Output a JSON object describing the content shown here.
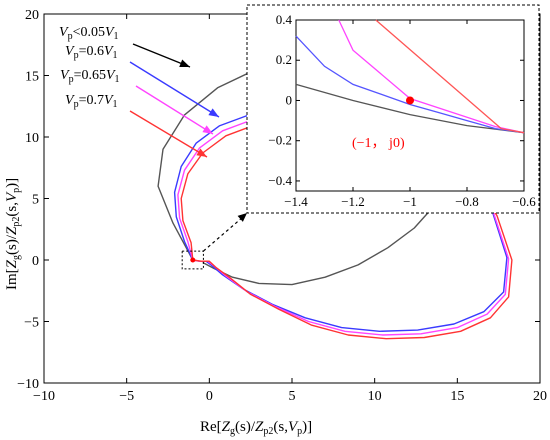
{
  "chart_data": [
    {
      "type": "line",
      "title": "",
      "xlabel": {
        "pre": "Re[",
        "a": "Z",
        "as": "g",
        "b": "(s)/",
        "c": "Z",
        "cs": "p2",
        "d": "(s,",
        "e": "V",
        "es": "p",
        "f": ")]"
      },
      "ylabel": {
        "pre": "Im[",
        "a": "Z",
        "as": "g",
        "b": "(s)/",
        "c": "Z",
        "cs": "p2",
        "d": "(s,",
        "e": "V",
        "es": "p",
        "f": ")]"
      },
      "xlim": [
        -10,
        20
      ],
      "ylim": [
        -10,
        20
      ],
      "x_ticks": [
        "−10",
        "−5",
        "0",
        "5",
        "10",
        "15",
        "20"
      ],
      "y_ticks": [
        "20",
        "15",
        "10",
        "5",
        "0",
        "−5",
        "−10"
      ],
      "x_tick_values": [
        -10,
        -5,
        0,
        5,
        10,
        15,
        20
      ],
      "y_tick_values": [
        20,
        15,
        10,
        5,
        0,
        -5,
        -10
      ],
      "grid": false,
      "legend_position": "top-left",
      "series": [
        {
          "name": "Vp<0.05V1",
          "label": {
            "v": "V",
            "vs": "p",
            "rel": "<0.05",
            "v1": "V",
            "v1s": "1"
          },
          "color": "#555555",
          "x": [
            -1.0,
            -2.2,
            -3.1,
            -2.8,
            -1.5,
            0.5,
            3.0,
            5.5,
            8.0,
            10.2,
            12.0,
            13.4,
            14.4,
            15.0,
            15.2,
            15.0,
            14.5,
            13.6,
            12.4,
            10.8,
            9.0,
            7.0,
            5.0,
            3.0,
            1.4,
            0.3,
            -0.4
          ],
          "y": [
            0.0,
            3.0,
            6.0,
            9.0,
            11.8,
            14.0,
            15.6,
            16.6,
            17.1,
            17.1,
            16.6,
            15.7,
            14.4,
            12.6,
            10.6,
            8.4,
            6.4,
            4.4,
            2.6,
            1.0,
            -0.4,
            -1.4,
            -2.0,
            -1.9,
            -1.4,
            -0.7,
            -0.2
          ]
        },
        {
          "name": "Vp=0.6V1",
          "label": {
            "v": "V",
            "vs": "p",
            "rel": "=0.6",
            "v1": "V",
            "v1s": "1"
          },
          "color": "#3a3aff",
          "x": [
            -1.0,
            -1.5,
            -2.0,
            -2.1,
            -1.7,
            -0.8,
            0.6,
            2.2,
            3.5,
            4.4,
            5.0,
            5.3,
            5.5,
            5.7,
            5.9,
            6.1,
            6.3,
            6.5,
            6.7,
            6.9,
            7.1,
            7.3,
            7.5,
            7.7,
            7.9,
            8.1,
            8.4,
            8.7,
            9.2,
            10.0,
            11.5,
            13.5,
            15.5,
            17.1,
            18.0,
            17.8,
            16.6,
            14.8,
            12.6,
            10.3,
            8.0,
            5.8,
            3.8,
            2.1,
            0.8,
            0.1,
            -0.2,
            -0.6,
            -1.0
          ],
          "y": [
            0.0,
            1.5,
            3.5,
            5.5,
            7.6,
            9.5,
            10.9,
            11.7,
            12.0,
            11.9,
            11.7,
            11.7,
            11.6,
            11.6,
            11.7,
            11.9,
            12.1,
            12.4,
            12.6,
            12.7,
            12.8,
            12.7,
            12.5,
            12.3,
            12.2,
            12.1,
            12.2,
            12.3,
            12.4,
            12.4,
            11.8,
            10.2,
            7.6,
            4.0,
            0.2,
            -2.6,
            -4.2,
            -5.2,
            -5.7,
            -5.8,
            -5.5,
            -4.7,
            -3.6,
            -2.4,
            -1.2,
            -0.4,
            -0.1,
            -0.1,
            0.0
          ]
        },
        {
          "name": "Vp=0.65V1",
          "label": {
            "v": "V",
            "vs": "p",
            "rel": "=0.65",
            "v1": "V",
            "v1s": "1"
          },
          "color": "#ff44ff",
          "x": [
            -1.0,
            -1.3,
            -1.8,
            -1.9,
            -1.5,
            -0.6,
            0.8,
            2.4,
            3.6,
            4.5,
            5.1,
            5.4,
            5.6,
            5.8,
            6.0,
            6.2,
            6.4,
            6.6,
            6.8,
            7.0,
            7.2,
            7.4,
            7.6,
            7.8,
            8.0,
            8.2,
            8.5,
            8.8,
            9.3,
            10.1,
            11.6,
            13.6,
            15.6,
            17.2,
            18.1,
            17.9,
            16.8,
            15.0,
            12.8,
            10.5,
            8.2,
            6.0,
            4.0,
            2.3,
            1.0,
            0.3,
            -0.1,
            -0.6,
            -1.0
          ],
          "y": [
            0.0,
            1.5,
            3.4,
            5.3,
            7.3,
            9.1,
            10.5,
            11.3,
            11.6,
            11.5,
            11.3,
            11.3,
            11.2,
            11.2,
            11.3,
            11.5,
            11.7,
            12.0,
            12.2,
            12.3,
            12.4,
            12.3,
            12.1,
            11.9,
            11.8,
            11.7,
            11.8,
            11.9,
            12.0,
            12.0,
            11.4,
            9.8,
            7.3,
            3.8,
            0.1,
            -2.8,
            -4.4,
            -5.5,
            -6.0,
            -6.1,
            -5.8,
            -5.0,
            -3.8,
            -2.6,
            -1.3,
            -0.5,
            -0.1,
            -0.1,
            0.0
          ]
        },
        {
          "name": "Vp=0.7V1",
          "label": {
            "v": "V",
            "vs": "p",
            "rel": "=0.7",
            "v1": "V",
            "v1s": "1"
          },
          "color": "#ff3333",
          "x": [
            -1.0,
            -1.1,
            -1.6,
            -1.7,
            -1.3,
            -0.4,
            1.0,
            2.6,
            3.8,
            4.7,
            5.3,
            5.6,
            5.8,
            6.0,
            6.2,
            6.4,
            6.6,
            6.8,
            7.0,
            7.2,
            7.4,
            7.6,
            7.8,
            8.0,
            8.2,
            8.4,
            8.7,
            9.0,
            9.5,
            10.3,
            11.8,
            13.8,
            15.8,
            17.4,
            18.3,
            18.1,
            17.0,
            15.2,
            13.0,
            10.7,
            8.4,
            6.2,
            4.2,
            2.5,
            1.2,
            0.4,
            0.0,
            -0.5,
            -1.0
          ],
          "y": [
            0.0,
            1.4,
            3.2,
            5.0,
            7.0,
            8.7,
            10.1,
            10.9,
            11.2,
            11.1,
            10.9,
            10.9,
            10.8,
            10.8,
            10.9,
            11.1,
            11.3,
            11.6,
            11.8,
            11.9,
            12.0,
            11.9,
            11.7,
            11.5,
            11.4,
            11.3,
            11.4,
            11.5,
            11.6,
            11.6,
            11.0,
            9.4,
            7.0,
            3.6,
            0.0,
            -3.0,
            -4.7,
            -5.8,
            -6.3,
            -6.4,
            -6.1,
            -5.3,
            -4.0,
            -2.8,
            -1.4,
            -0.6,
            -0.1,
            -0.1,
            0.0
          ]
        }
      ],
      "annotations": [
        {
          "type": "point",
          "x": -1,
          "y": 0,
          "color": "#ff0000"
        },
        {
          "type": "zoom_box",
          "x_range": [
            -1.4,
            -0.6
          ],
          "y_range": [
            -0.4,
            0.4
          ]
        }
      ]
    },
    {
      "type": "line",
      "title": "",
      "xlim": [
        -1.4,
        -0.6
      ],
      "ylim": [
        -0.45,
        0.4
      ],
      "x_ticks": [
        "−1.4",
        "−1.2",
        "−1",
        "−0.8",
        "−0.6"
      ],
      "y_ticks": [
        "0.4",
        "0.2",
        "0",
        "−0.2",
        "−0.4"
      ],
      "x_tick_values": [
        -1.4,
        -1.2,
        -1.0,
        -0.8,
        -0.6
      ],
      "y_tick_values": [
        0.4,
        0.2,
        0.0,
        -0.2,
        -0.4
      ],
      "grid": false,
      "series": [
        {
          "name": "Vp<0.05V1",
          "color": "#555555",
          "x": [
            -1.4,
            -1.2,
            -1.0,
            -0.8,
            -0.6
          ],
          "y": [
            0.08,
            0.0,
            -0.07,
            -0.125,
            -0.16
          ]
        },
        {
          "name": "Vp=0.6V1",
          "color": "#5555ff",
          "x": [
            -1.4,
            -1.3,
            -1.2,
            -1.1,
            -1.0,
            -0.9,
            -0.8,
            -0.7,
            -0.6
          ],
          "y": [
            0.32,
            0.17,
            0.08,
            0.03,
            -0.02,
            -0.06,
            -0.1,
            -0.14,
            -0.16
          ]
        },
        {
          "name": "Vp=0.65V1",
          "color": "#ff44ff",
          "x": [
            -1.25,
            -1.2,
            -1.0,
            -0.7,
            -0.6
          ],
          "y": [
            0.4,
            0.25,
            0.01,
            -0.13,
            -0.16
          ]
        },
        {
          "name": "Vp=0.7V1",
          "color": "#ff5555",
          "x": [
            -1.12,
            -0.68,
            -0.6
          ],
          "y": [
            0.4,
            -0.14,
            -0.16
          ]
        }
      ],
      "point": {
        "x": -1,
        "y": 0,
        "color": "#ff0000",
        "label": "(−1， j0)"
      }
    }
  ]
}
